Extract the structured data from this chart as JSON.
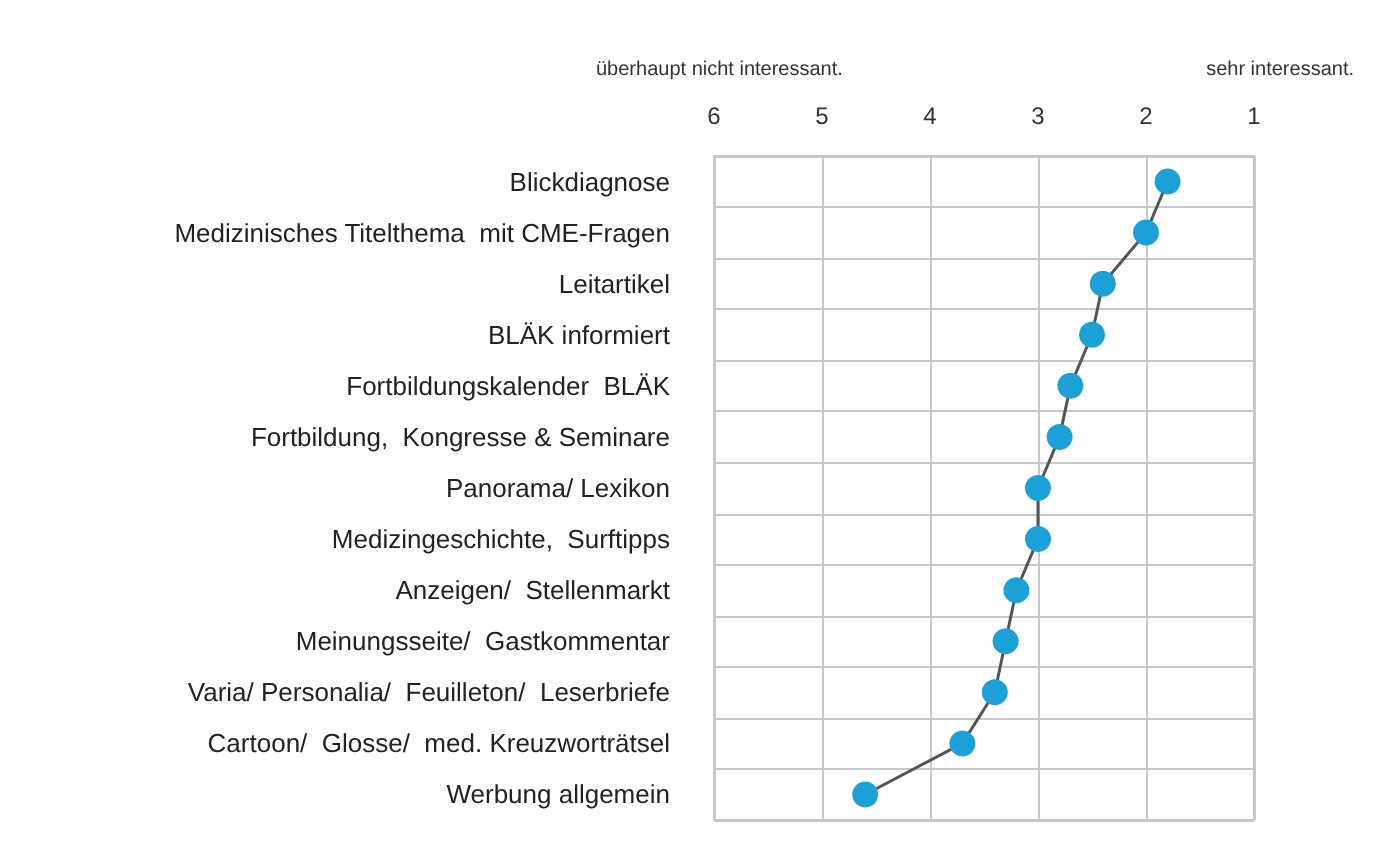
{
  "chart_data": {
    "type": "line",
    "orientation": "horizontal",
    "categories": [
      "Blickdiagnose",
      "Medizinisches Titelthema  mit CME-Fragen",
      "Leitartikel",
      "BLÄK informiert",
      "Fortbildungskalender  BLÄK",
      "Fortbildung,  Kongresse & Seminare",
      "Panorama/ Lexikon",
      "Medizingeschichte,  Surftipps",
      "Anzeigen/  Stellenmarkt",
      "Meinungsseite/  Gastkommentar",
      "Varia/ Personalia/  Feuilleton/  Leserbriefe",
      "Cartoon/  Glosse/  med. Kreuzworträtsel",
      "Werbung allgemein"
    ],
    "series": [
      {
        "color": "#1ba1d8",
        "values": [
          1.8,
          2.0,
          2.4,
          2.5,
          2.7,
          2.8,
          3.0,
          3.0,
          3.2,
          3.3,
          3.4,
          3.7,
          4.6
        ]
      }
    ],
    "xlim": [
      6,
      1
    ],
    "xticks": [
      6,
      5,
      4,
      3,
      2,
      1
    ],
    "annotations": [
      "überhaupt nicht interessant.",
      "sehr interessant."
    ],
    "grid": true,
    "marker": "circle",
    "line_style": "solid"
  }
}
